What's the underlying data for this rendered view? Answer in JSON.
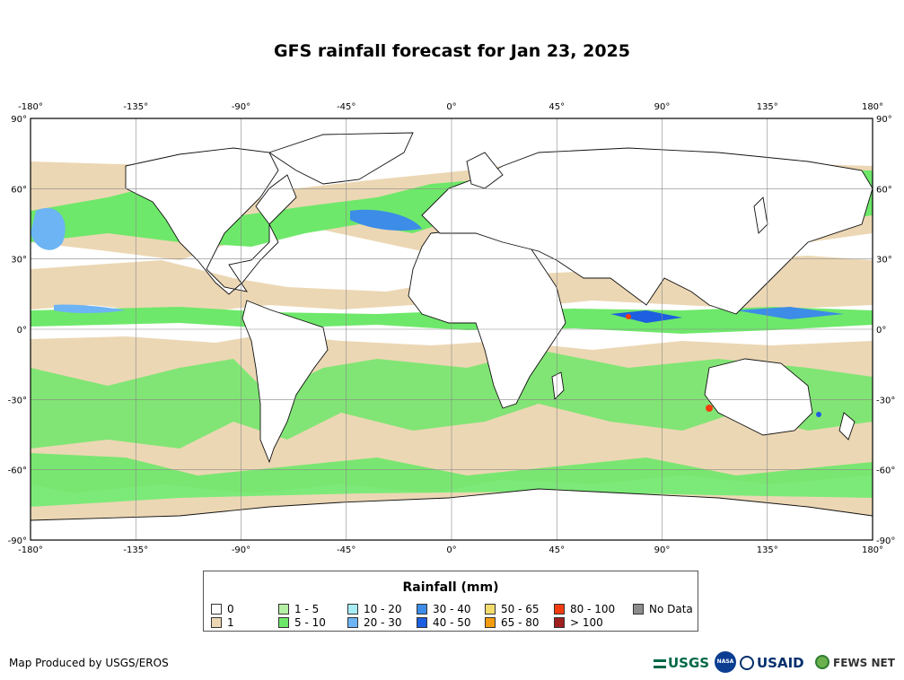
{
  "title": "GFS rainfall forecast for Jan 23, 2025",
  "lon_ticks": [
    "-180°",
    "-135°",
    "-90°",
    "-45°",
    "0°",
    "45°",
    "90°",
    "135°",
    "180°"
  ],
  "lat_ticks": [
    "90°",
    "60°",
    "30°",
    "0°",
    "-30°",
    "-60°",
    "-90°"
  ],
  "legend": {
    "title": "Rainfall (mm)",
    "items": [
      {
        "label": "0",
        "color": "#ffffff"
      },
      {
        "label": "1",
        "color": "#ecd7b4"
      },
      {
        "label": "1 - 5",
        "color": "#b4f0a4"
      },
      {
        "label": "5 - 10",
        "color": "#6ee86a"
      },
      {
        "label": "10 - 20",
        "color": "#a8ecf4"
      },
      {
        "label": "20 - 30",
        "color": "#6cb4f4"
      },
      {
        "label": "30 - 40",
        "color": "#3c8ce8"
      },
      {
        "label": "40 - 50",
        "color": "#1e5ee0"
      },
      {
        "label": "50 - 65",
        "color": "#f4dc6c"
      },
      {
        "label": "65 - 80",
        "color": "#f49c10"
      },
      {
        "label": "80 - 100",
        "color": "#f43c10"
      },
      {
        "label": "> 100",
        "color": "#a02020"
      },
      {
        "label": "No Data",
        "color": "#8c8c8c"
      }
    ]
  },
  "credit": "Map Produced by USGS/EROS",
  "logos": {
    "usgs": "USGS",
    "nasa": "NASA",
    "usaid": "USAID",
    "fews": "FEWS NET"
  },
  "colors": {
    "sea_light": "#ecd7b4",
    "rain_light": "#b4f0a4",
    "rain": "#6ee86a",
    "heavy": "#1e5ee0"
  }
}
